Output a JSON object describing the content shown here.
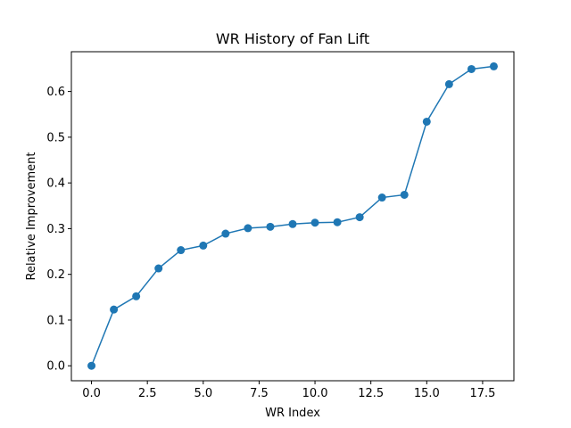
{
  "chart_data": {
    "type": "line",
    "title": "WR History of Fan Lift",
    "xlabel": "WR Index",
    "ylabel": "Relative Improvement",
    "xlim": [
      -0.9,
      18.9
    ],
    "ylim": [
      -0.0327,
      0.687
    ],
    "x_ticks": [
      0,
      2.5,
      5,
      7.5,
      10,
      12.5,
      15,
      17.5
    ],
    "x_tick_labels": [
      "0.0",
      "2.5",
      "5.0",
      "7.5",
      "10.0",
      "12.5",
      "15.0",
      "17.5"
    ],
    "y_ticks": [
      0,
      0.1,
      0.2,
      0.3,
      0.4,
      0.5,
      0.6
    ],
    "y_tick_labels": [
      "0.0",
      "0.1",
      "0.2",
      "0.3",
      "0.4",
      "0.5",
      "0.6"
    ],
    "grid": false,
    "series": [
      {
        "color": "#1f77b4",
        "marker": "circle",
        "x": [
          0,
          1,
          2,
          3,
          4,
          5,
          6,
          7,
          8,
          9,
          10,
          11,
          12,
          13,
          14,
          15,
          16,
          17,
          18
        ],
        "y": [
          0.0,
          0.123,
          0.152,
          0.213,
          0.253,
          0.263,
          0.289,
          0.301,
          0.304,
          0.31,
          0.313,
          0.314,
          0.325,
          0.368,
          0.374,
          0.534,
          0.616,
          0.649,
          0.655
        ]
      }
    ]
  }
}
